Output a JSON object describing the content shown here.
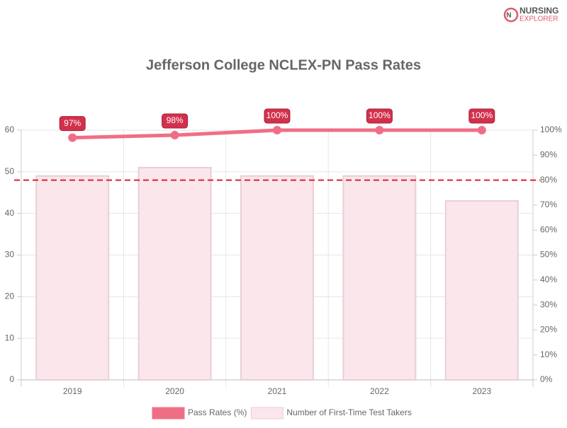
{
  "logo": {
    "line1": "NURSING",
    "line2": "EXPLORER"
  },
  "chart_data": {
    "type": "combo",
    "title": "Jefferson College NCLEX-PN Pass Rates",
    "categories": [
      "2019",
      "2020",
      "2021",
      "2022",
      "2023"
    ],
    "series": [
      {
        "name": "Pass Rates (%)",
        "type": "line",
        "axis": "y2",
        "color": "#f06e85",
        "values": [
          97,
          98,
          100,
          100,
          100
        ],
        "value_labels": [
          "97%",
          "98%",
          "100%",
          "100%",
          "100%"
        ]
      },
      {
        "name": "Number of First-Time Test Takers",
        "type": "bar",
        "axis": "y",
        "color": "#fae6eb",
        "values": [
          49,
          51,
          49,
          49,
          43
        ]
      }
    ],
    "ylim": [
      0,
      60
    ],
    "yticks": [
      0,
      10,
      20,
      30,
      40,
      50,
      60
    ],
    "y2lim": [
      0,
      100
    ],
    "y2ticks": [
      {
        "value": 0,
        "label": "0%"
      },
      {
        "value": 10,
        "label": "10%"
      },
      {
        "value": 20,
        "label": "20%"
      },
      {
        "value": 30,
        "label": "30%"
      },
      {
        "value": 40,
        "label": "40%"
      },
      {
        "value": 50,
        "label": "50%"
      },
      {
        "value": 60,
        "label": "60%"
      },
      {
        "value": 70,
        "label": "70%"
      },
      {
        "value": 80,
        "label": "80%"
      },
      {
        "value": 90,
        "label": "90%"
      },
      {
        "value": 100,
        "label": "100%"
      }
    ],
    "reference_line": {
      "value": 80,
      "axis": "y2",
      "color": "#e0202a"
    },
    "grid": true,
    "legend": "bottom"
  }
}
